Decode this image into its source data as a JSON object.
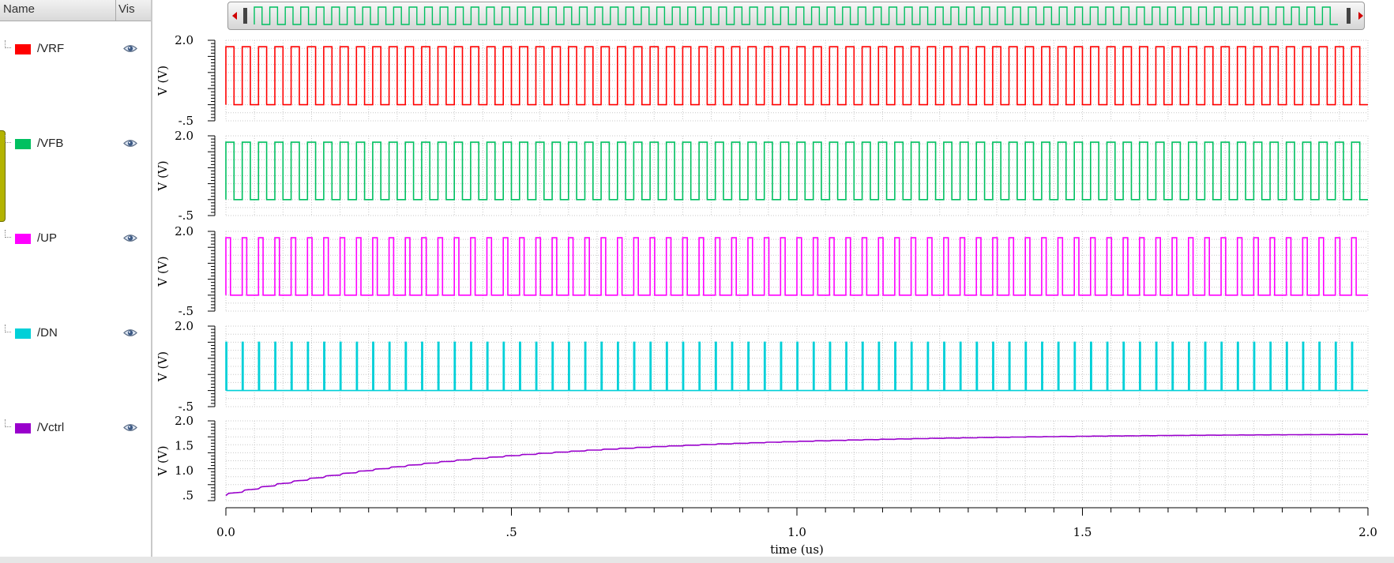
{
  "browser": {
    "header_name": "Name",
    "header_vis": "Vis",
    "signals": [
      {
        "name": "/VRF",
        "color": "#ff0000",
        "icon": "eye-icon"
      },
      {
        "name": "/VFB",
        "color": "#00c060",
        "icon": "eye-icon"
      },
      {
        "name": "/UP",
        "color": "#ff00ff",
        "icon": "eye-icon"
      },
      {
        "name": "/DN",
        "color": "#00d0d8",
        "icon": "eye-icon"
      },
      {
        "name": "/Vctrl",
        "color": "#9900cc",
        "icon": "eye-icon"
      }
    ]
  },
  "scroller": {
    "left_icon": "scroll-left-arrow-icon",
    "right_icon": "scroll-right-arrow-icon"
  },
  "chart_data": {
    "type": "line",
    "xlabel": "time (us)",
    "xlim": [
      0,
      2.0
    ],
    "x_ticks": [
      "0.0",
      ".5",
      "1.0",
      "1.5",
      "2.0"
    ],
    "grid": true,
    "series": [
      {
        "name": "/VRF",
        "color": "#ff0000",
        "waveform": "square",
        "pulses": 70,
        "duty": 0.5,
        "low": 0.0,
        "high": 1.8,
        "ylim": [
          -0.5,
          2.0
        ],
        "ylabel": "V (V)",
        "y_ticks": [
          "2.0",
          "-.5"
        ]
      },
      {
        "name": "/VFB",
        "color": "#00c060",
        "waveform": "square",
        "pulses": 70,
        "duty": 0.5,
        "low": 0.0,
        "high": 1.8,
        "ylim": [
          -0.5,
          2.0
        ],
        "ylabel": "V (V)",
        "y_ticks": [
          "2.0",
          "-.5"
        ]
      },
      {
        "name": "/UP",
        "color": "#ff00ff",
        "waveform": "pulse",
        "pulses": 70,
        "duty": 0.28,
        "low": 0.0,
        "high": 1.8,
        "ylim": [
          -0.5,
          2.0
        ],
        "ylabel": "V (V)",
        "y_ticks": [
          "2.0",
          "-.5"
        ]
      },
      {
        "name": "/DN",
        "color": "#00d0d8",
        "waveform": "pulse",
        "pulses": 70,
        "duty": 0.06,
        "low": 0.0,
        "high": 1.5,
        "ylim": [
          -0.5,
          2.0
        ],
        "ylabel": "V (V)",
        "y_ticks": [
          "2.0",
          "-.5"
        ]
      },
      {
        "name": "/Vctrl",
        "color": "#9900cc",
        "waveform": "exponential",
        "start": 0.5,
        "end": 1.75,
        "tau_us": 0.5,
        "ylim": [
          0.4,
          2.0
        ],
        "ylabel": "V (V)",
        "y_ticks": [
          "2.0",
          "1.5",
          "1.0",
          ".5"
        ]
      }
    ]
  }
}
